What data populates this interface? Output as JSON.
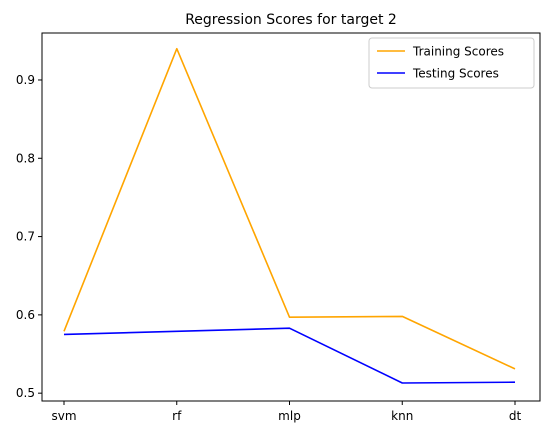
{
  "chart_data": {
    "type": "line",
    "title": "Regression Scores for target 2",
    "xlabel": "",
    "ylabel": "",
    "categories": [
      "svm",
      "rf",
      "mlp",
      "knn",
      "dt"
    ],
    "ylim": [
      0.49,
      0.96
    ],
    "yticks": [
      0.5,
      0.6,
      0.7,
      0.8,
      0.9
    ],
    "ytick_labels": [
      "0.5",
      "0.6",
      "0.7",
      "0.8",
      "0.9"
    ],
    "grid": false,
    "legend_position": "top-right",
    "series": [
      {
        "name": "Training Scores",
        "color": "#ffa500",
        "values": [
          0.579,
          0.94,
          0.597,
          0.598,
          0.531
        ]
      },
      {
        "name": "Testing Scores",
        "color": "#0000ff",
        "values": [
          0.575,
          0.579,
          0.583,
          0.513,
          0.514
        ]
      }
    ]
  }
}
